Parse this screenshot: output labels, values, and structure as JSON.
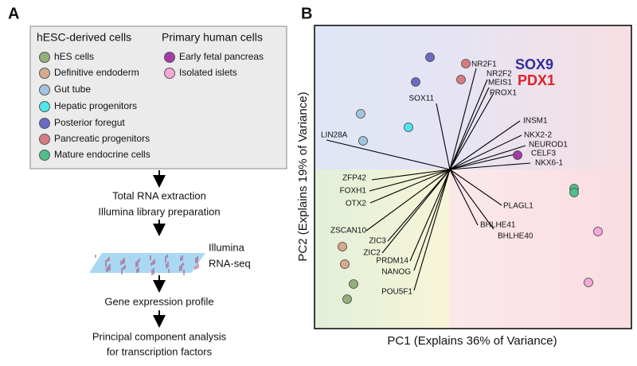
{
  "panel_a": {
    "label": "A",
    "legend": {
      "group_1": {
        "title": "hESC-derived cells",
        "items": [
          "hES cells",
          "Definitive endoderm",
          "Gut tube",
          "Hepatic progenitors",
          "Posterior foregut",
          "Pancreatic progenitors",
          "Mature endocrine cells"
        ]
      },
      "group_2": {
        "title": "Primary human cells",
        "items": [
          "Early fetal pancreas",
          "Isolated islets"
        ]
      }
    },
    "steps": [
      "Total RNA extraction",
      "Illumina library preparation",
      "Illumina",
      "RNA-seq",
      "Gene expression profile",
      "Principal component analysis",
      "for transcription factors"
    ]
  },
  "panel_b": {
    "label": "B",
    "x_label": "PC1 (Explains 36% of Variance)",
    "y_label": "PC2 (Explains 19% of Variance)",
    "highlight": [
      "SOX9",
      "PDX1"
    ],
    "genes": [
      "NR2F1",
      "NR2F2",
      "MEIS1",
      "PROX1",
      "SOX11",
      "INSM1",
      "NKX2-2",
      "NEUROD1",
      "CELF3",
      "NKX6-1",
      "LIN28A",
      "ZFP42",
      "FOXH1",
      "OTX2",
      "PLAGL1",
      "BHLHE41",
      "BHLHE40",
      "ZSCAN10",
      "ZIC3",
      "ZIC2",
      "PRDM14",
      "NANOG",
      "POU5F1"
    ]
  }
}
